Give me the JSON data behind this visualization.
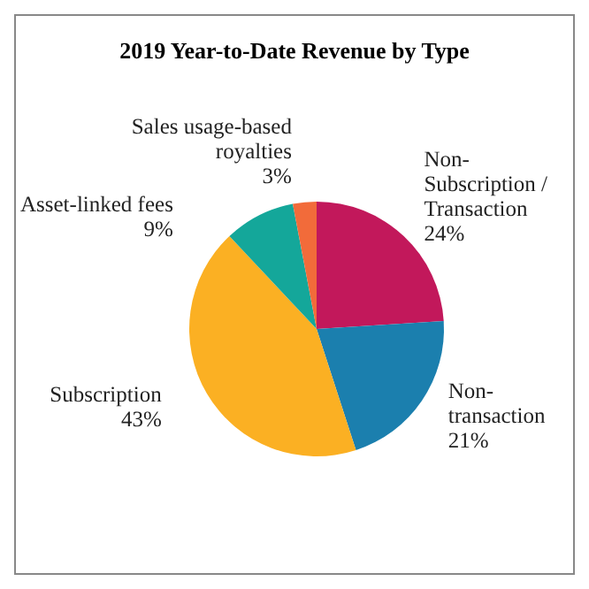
{
  "chart_data": {
    "type": "pie",
    "title": "2019 Year-to-Date Revenue by Type",
    "categories": [
      "Non-Subscription / Transaction",
      "Non-transaction",
      "Subscription",
      "Asset-linked fees",
      "Sales usage-based royalties"
    ],
    "values": [
      24,
      21,
      43,
      9,
      3
    ],
    "value_labels": [
      "24%",
      "21%",
      "43%",
      "9%",
      "3%"
    ],
    "colors": [
      "#c2185b",
      "#1b7fae",
      "#fbb023",
      "#14a79a",
      "#f26b3a"
    ]
  }
}
